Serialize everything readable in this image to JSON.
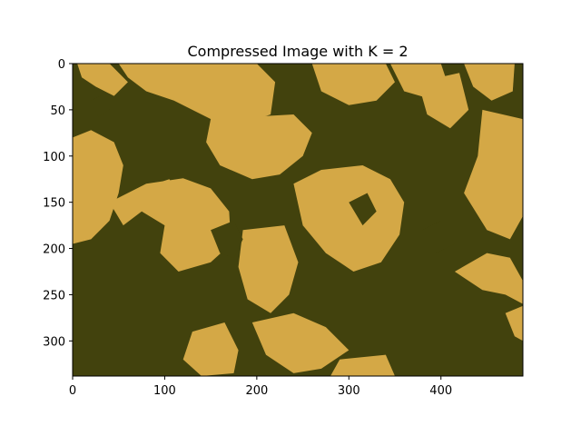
{
  "chart_data": {
    "type": "heatmap",
    "title": "Compressed Image with K = 2",
    "xlabel": "",
    "ylabel": "",
    "image_width": 489,
    "image_height": 338,
    "xlim": [
      0,
      489
    ],
    "ylim": [
      338,
      0
    ],
    "y_inverted": true,
    "x_ticks": [
      0,
      100,
      200,
      300,
      400
    ],
    "y_ticks": [
      0,
      50,
      100,
      150,
      200,
      250,
      300
    ],
    "grid": false,
    "legend": "none",
    "palette": [
      "#42420d",
      "#d4a846"
    ],
    "k": 2
  }
}
